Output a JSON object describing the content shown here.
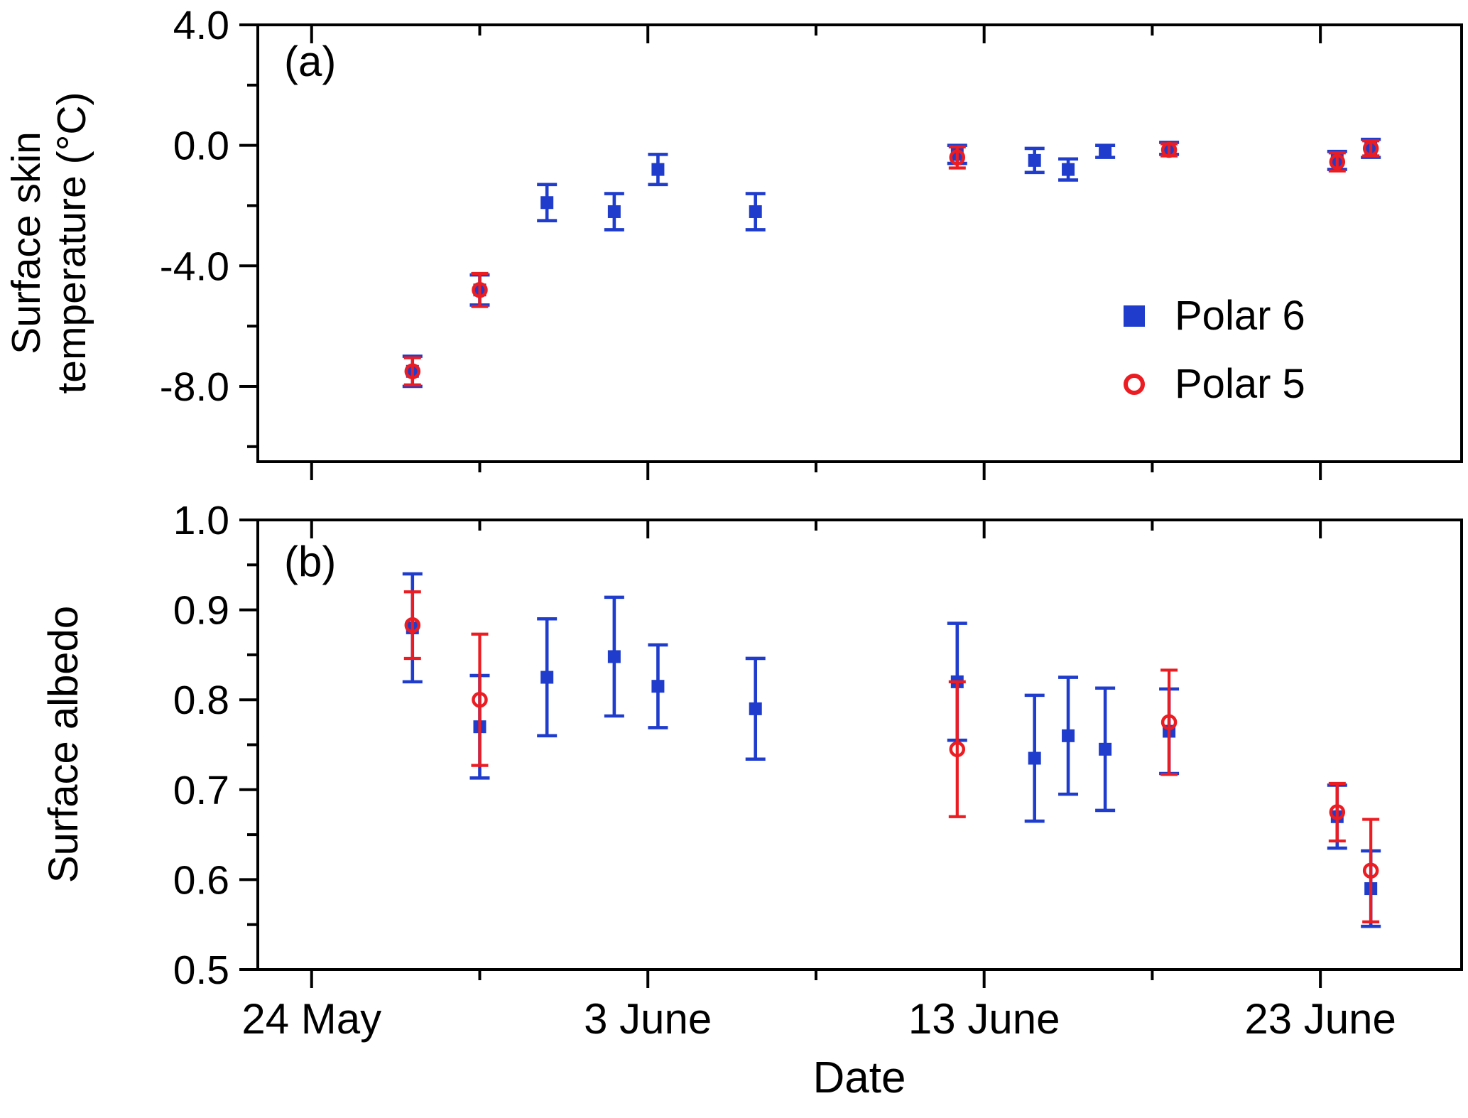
{
  "figure": {
    "background": "#ffffff",
    "panel_a_tag": "(a)",
    "panel_b_tag": "(b)",
    "xlabel": "Date",
    "ylabel_a_line1": "Surface skin",
    "ylabel_a_line2": "temperature (°C)",
    "ylabel_b": "Surface albedo",
    "colors": {
      "polar6": "#1f3ccc",
      "polar5": "#eb1c22",
      "axis": "#000000"
    },
    "legend": {
      "items": [
        {
          "label": "Polar 6",
          "marker": "filled-square",
          "color": "#1f3ccc"
        },
        {
          "label": "Polar 5",
          "marker": "open-circle",
          "color": "#eb1c22"
        }
      ]
    }
  },
  "chart_data": [
    {
      "type": "scatter",
      "panel": "a",
      "title": "",
      "ylabel": "Surface skin temperature (°C)",
      "xlabel": "Date",
      "x_unit": "days since 24 May",
      "xlim": [
        -1.6,
        34.2
      ],
      "ylim": [
        -10.5,
        4
      ],
      "xticks": [
        0,
        10,
        20,
        30
      ],
      "xtick_labels": [
        "24 May",
        "3 June",
        "13 June",
        "23 June"
      ],
      "xminor": [
        5,
        15,
        25
      ],
      "yticks": [
        4,
        0,
        -4,
        -8
      ],
      "ytick_labels": [
        "4.0",
        "0.0",
        "-4.0",
        "-8.0"
      ],
      "yminor": [
        2,
        -2,
        -6,
        -10
      ],
      "show_xtick_labels": false,
      "grid": false,
      "series": [
        {
          "name": "Polar 6",
          "color": "#1f3ccc",
          "marker": "filled-square",
          "points": [
            {
              "x": 3,
              "y": -7.5,
              "err": 0.5
            },
            {
              "x": 5,
              "y": -4.8,
              "err": 0.5
            },
            {
              "x": 7,
              "y": -1.9,
              "err": 0.6
            },
            {
              "x": 9,
              "y": -2.2,
              "err": 0.6
            },
            {
              "x": 10.3,
              "y": -0.8,
              "err": 0.5
            },
            {
              "x": 13.2,
              "y": -2.2,
              "err": 0.6
            },
            {
              "x": 19.2,
              "y": -0.3,
              "err": 0.3
            },
            {
              "x": 21.5,
              "y": -0.5,
              "err": 0.4
            },
            {
              "x": 22.5,
              "y": -0.8,
              "err": 0.35
            },
            {
              "x": 23.6,
              "y": -0.2,
              "err": 0.2
            },
            {
              "x": 25.5,
              "y": -0.1,
              "err": 0.2
            },
            {
              "x": 30.5,
              "y": -0.5,
              "err": 0.3
            },
            {
              "x": 31.5,
              "y": -0.1,
              "err": 0.3
            }
          ]
        },
        {
          "name": "Polar 5",
          "color": "#eb1c22",
          "marker": "open-circle",
          "points": [
            {
              "x": 3,
              "y": -7.5,
              "err": 0.45
            },
            {
              "x": 5,
              "y": -4.8,
              "err": 0.55
            },
            {
              "x": 19.2,
              "y": -0.4,
              "err": 0.35
            },
            {
              "x": 25.5,
              "y": -0.15,
              "err": 0.2
            },
            {
              "x": 30.5,
              "y": -0.55,
              "err": 0.3
            },
            {
              "x": 31.5,
              "y": -0.1,
              "err": 0.25
            }
          ]
        }
      ]
    },
    {
      "type": "scatter",
      "panel": "b",
      "title": "",
      "ylabel": "Surface albedo",
      "xlabel": "Date",
      "x_unit": "days since 24 May",
      "xlim": [
        -1.6,
        34.2
      ],
      "ylim": [
        0.5,
        1.0
      ],
      "xticks": [
        0,
        10,
        20,
        30
      ],
      "xtick_labels": [
        "24 May",
        "3 June",
        "13 June",
        "23 June"
      ],
      "xminor": [
        5,
        15,
        25
      ],
      "yticks": [
        1.0,
        0.9,
        0.8,
        0.7,
        0.6,
        0.5
      ],
      "ytick_labels": [
        "1.0",
        "0.9",
        "0.8",
        "0.7",
        "0.6",
        "0.5"
      ],
      "yminor": [
        0.95,
        0.85,
        0.75,
        0.65,
        0.55
      ],
      "show_xtick_labels": true,
      "grid": false,
      "series": [
        {
          "name": "Polar 6",
          "color": "#1f3ccc",
          "marker": "filled-square",
          "points": [
            {
              "x": 3,
              "y": 0.88,
              "err": 0.06
            },
            {
              "x": 5,
              "y": 0.77,
              "err": 0.057
            },
            {
              "x": 7,
              "y": 0.825,
              "err": 0.065
            },
            {
              "x": 9,
              "y": 0.848,
              "err": 0.066
            },
            {
              "x": 10.3,
              "y": 0.815,
              "err": 0.046
            },
            {
              "x": 13.2,
              "y": 0.79,
              "err": 0.056
            },
            {
              "x": 19.2,
              "y": 0.82,
              "err": 0.065
            },
            {
              "x": 21.5,
              "y": 0.735,
              "err": 0.07
            },
            {
              "x": 22.5,
              "y": 0.76,
              "err": 0.065
            },
            {
              "x": 23.6,
              "y": 0.745,
              "err": 0.068
            },
            {
              "x": 25.5,
              "y": 0.765,
              "err": 0.047
            },
            {
              "x": 30.5,
              "y": 0.67,
              "err": 0.035
            },
            {
              "x": 31.5,
              "y": 0.59,
              "err": 0.042
            }
          ]
        },
        {
          "name": "Polar 5",
          "color": "#eb1c22",
          "marker": "open-circle",
          "points": [
            {
              "x": 3,
              "y": 0.883,
              "err": 0.037
            },
            {
              "x": 5,
              "y": 0.8,
              "err": 0.073
            },
            {
              "x": 19.2,
              "y": 0.745,
              "err": 0.075
            },
            {
              "x": 25.5,
              "y": 0.775,
              "err": 0.058
            },
            {
              "x": 30.5,
              "y": 0.675,
              "err": 0.032
            },
            {
              "x": 31.5,
              "y": 0.61,
              "err": 0.057
            }
          ]
        }
      ]
    }
  ]
}
